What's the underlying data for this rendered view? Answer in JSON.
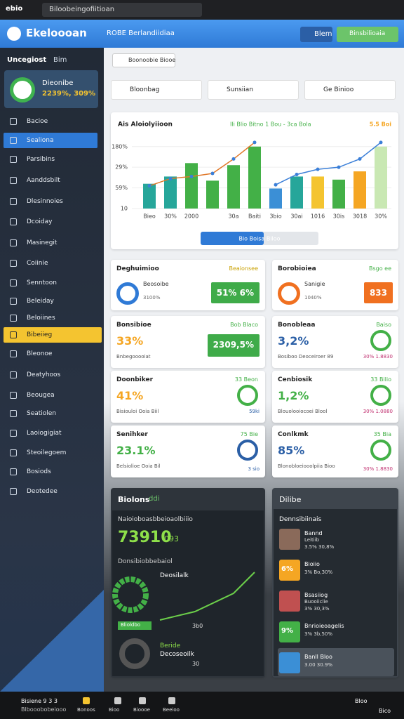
{
  "topbar": {
    "app": "ebio",
    "address": "Biloobeingofiitioan"
  },
  "header": {
    "brand": "Ekeloooan",
    "search": "ROBE Berlandiidiaa",
    "button1": "Blem",
    "button2": "Binsbilioaia"
  },
  "sidebar": {
    "title": "Uncegiost",
    "tag": "Bim",
    "profile_name": "Dieonibe",
    "profile_value": "2239%, 309%",
    "items": [
      "Bacioe",
      "Sealiona",
      "Parsibins",
      "Aanddsbilt",
      "Dlesinnoies",
      "Dcoiday",
      "Masinegit",
      "Coiinie",
      "Senntoon",
      "Beleiday",
      "Beloiines",
      "Bibeiieg",
      "Bleonoe",
      "Deatyhoos",
      "Beougea",
      "Seatiolen",
      "Laoiogigiat",
      "Steoilegoem",
      "Bosiods",
      "Deotedee"
    ]
  },
  "search": "Boonoobie Biooe",
  "filters": [
    "Bloonbag",
    "Sunsiian",
    "Ge Binioo"
  ],
  "chart_data": {
    "type": "bar",
    "title": "Ais Aloiolyiioon",
    "subtitle": "Ili Blio Bitno 1 Bou - 3ca Bola",
    "annotation": "5.5 Boi",
    "categories": [
      "Bieo",
      "30%",
      "2000",
      null,
      "30a",
      "Baiti",
      "3bio",
      "30ai",
      "1016",
      "30is",
      "3018",
      "30%"
    ],
    "series": [
      {
        "name": "Bars",
        "colors": [
          "#26a69a",
          "#26a69a",
          "#43b047",
          "#43b047",
          "#43b047",
          "#43b047",
          "#3b8fd6",
          "#26a69a",
          "#f4c430",
          "#43b047",
          "#f5a623",
          "#c9e8b3"
        ],
        "values": [
          22,
          25.5,
          32,
          23.5,
          31,
          40,
          19.7,
          25.5,
          25.5,
          24,
          28,
          40
        ]
      },
      {
        "name": "Line A",
        "type": "line",
        "color": "#e0782a",
        "values": [
          21,
          24.5,
          25.5,
          27,
          34,
          42,
          null,
          null,
          null,
          null,
          null,
          null
        ]
      },
      {
        "name": "Line B",
        "type": "line",
        "color": "#3b7fd8",
        "values": [
          null,
          null,
          null,
          null,
          null,
          null,
          21.5,
          26.5,
          29,
          30,
          34,
          42
        ]
      }
    ],
    "ylim": [
      10,
      44
    ],
    "yticks": [
      10,
      {
        "value": 20,
        "label": "59%"
      },
      {
        "value": 30,
        "label": "29%"
      },
      {
        "value": 40,
        "label": "180%"
      }
    ],
    "range_label": "Bio Boisa Biloo"
  },
  "cards": [
    {
      "title": "Deghuimioo",
      "badge": "Beaionsee",
      "label": "Beosoibe",
      "sub": "3100%",
      "value": "51% 6%"
    },
    {
      "title": "Borobioiea",
      "badge": "Bsgo ee",
      "label": "Sanigie",
      "sub": "1040%",
      "value": "833"
    },
    {
      "title": "Bonsibioe",
      "badge": "Bob Blaco",
      "label": "33%",
      "sub": "Bnbegooooiat",
      "value": "2309,5%"
    },
    {
      "title": "Bonobleaa",
      "badge": "Baiso",
      "label": "3,2%",
      "sub": "Bosiboo Deoceiroer 89",
      "value": "30% 1.8830"
    },
    {
      "title": "Doonbiker",
      "badge": "33 Beon",
      "label": "41%",
      "sub": "Bisiouloi Ooia Biil",
      "value": "59ki"
    },
    {
      "title": "Cenbiosik",
      "badge": "33 Bilio",
      "label": "1,2%",
      "sub": "Blouolooiocoei Blool",
      "value": "30% 1.0880"
    },
    {
      "title": "Senihker",
      "badge": "75 Bie",
      "label": "23.1%",
      "sub": "Belsiolioe Ooia Bil",
      "value": "3 sio"
    },
    {
      "title": "Conlkmk",
      "badge": "35 Bia",
      "label": "85%",
      "sub": "Blonobloeiooolpiia Bioo",
      "value": "30% 1.8830"
    }
  ],
  "panel_left": {
    "title": "Biolons",
    "badge": "ddi",
    "heading": "Naioioboasbbeioaolbiiio",
    "big": "73910",
    "big_sub": "093",
    "section": "Donsibiobbebaiol",
    "label1": "Deosilalk",
    "tag": "Blioldbo",
    "tag_value": "3b0",
    "label2": "Beride",
    "label3": "Decoseoilk",
    "label3_value": "30"
  },
  "panel_right": {
    "title": "Dilibe",
    "heading": "Dennsibiinais",
    "items": [
      {
        "name": "Bannd",
        "sub": "Leitiib",
        "value": "3.5% 30,8%"
      },
      {
        "tile": "6%",
        "name": "Bioiio",
        "value": "3% Bo,30%"
      },
      {
        "name": "Bsasiiog",
        "sub": "Buooiiclie",
        "value": "3% 30,3%"
      },
      {
        "tile": "9%",
        "name": "Bnrioieoagelis",
        "value": "3% 3b,50%"
      },
      {
        "name": "Banll Bloo",
        "value": "3.00 30.9%"
      }
    ]
  },
  "taskbar": {
    "user": "Bisiene 9 3 3",
    "user_sub": "Blbooobobeiooo",
    "apps": [
      "Bonoos",
      "Bioo",
      "Bioooe",
      "Beeioo"
    ],
    "right1": "Bloo",
    "right2": "Bico"
  }
}
